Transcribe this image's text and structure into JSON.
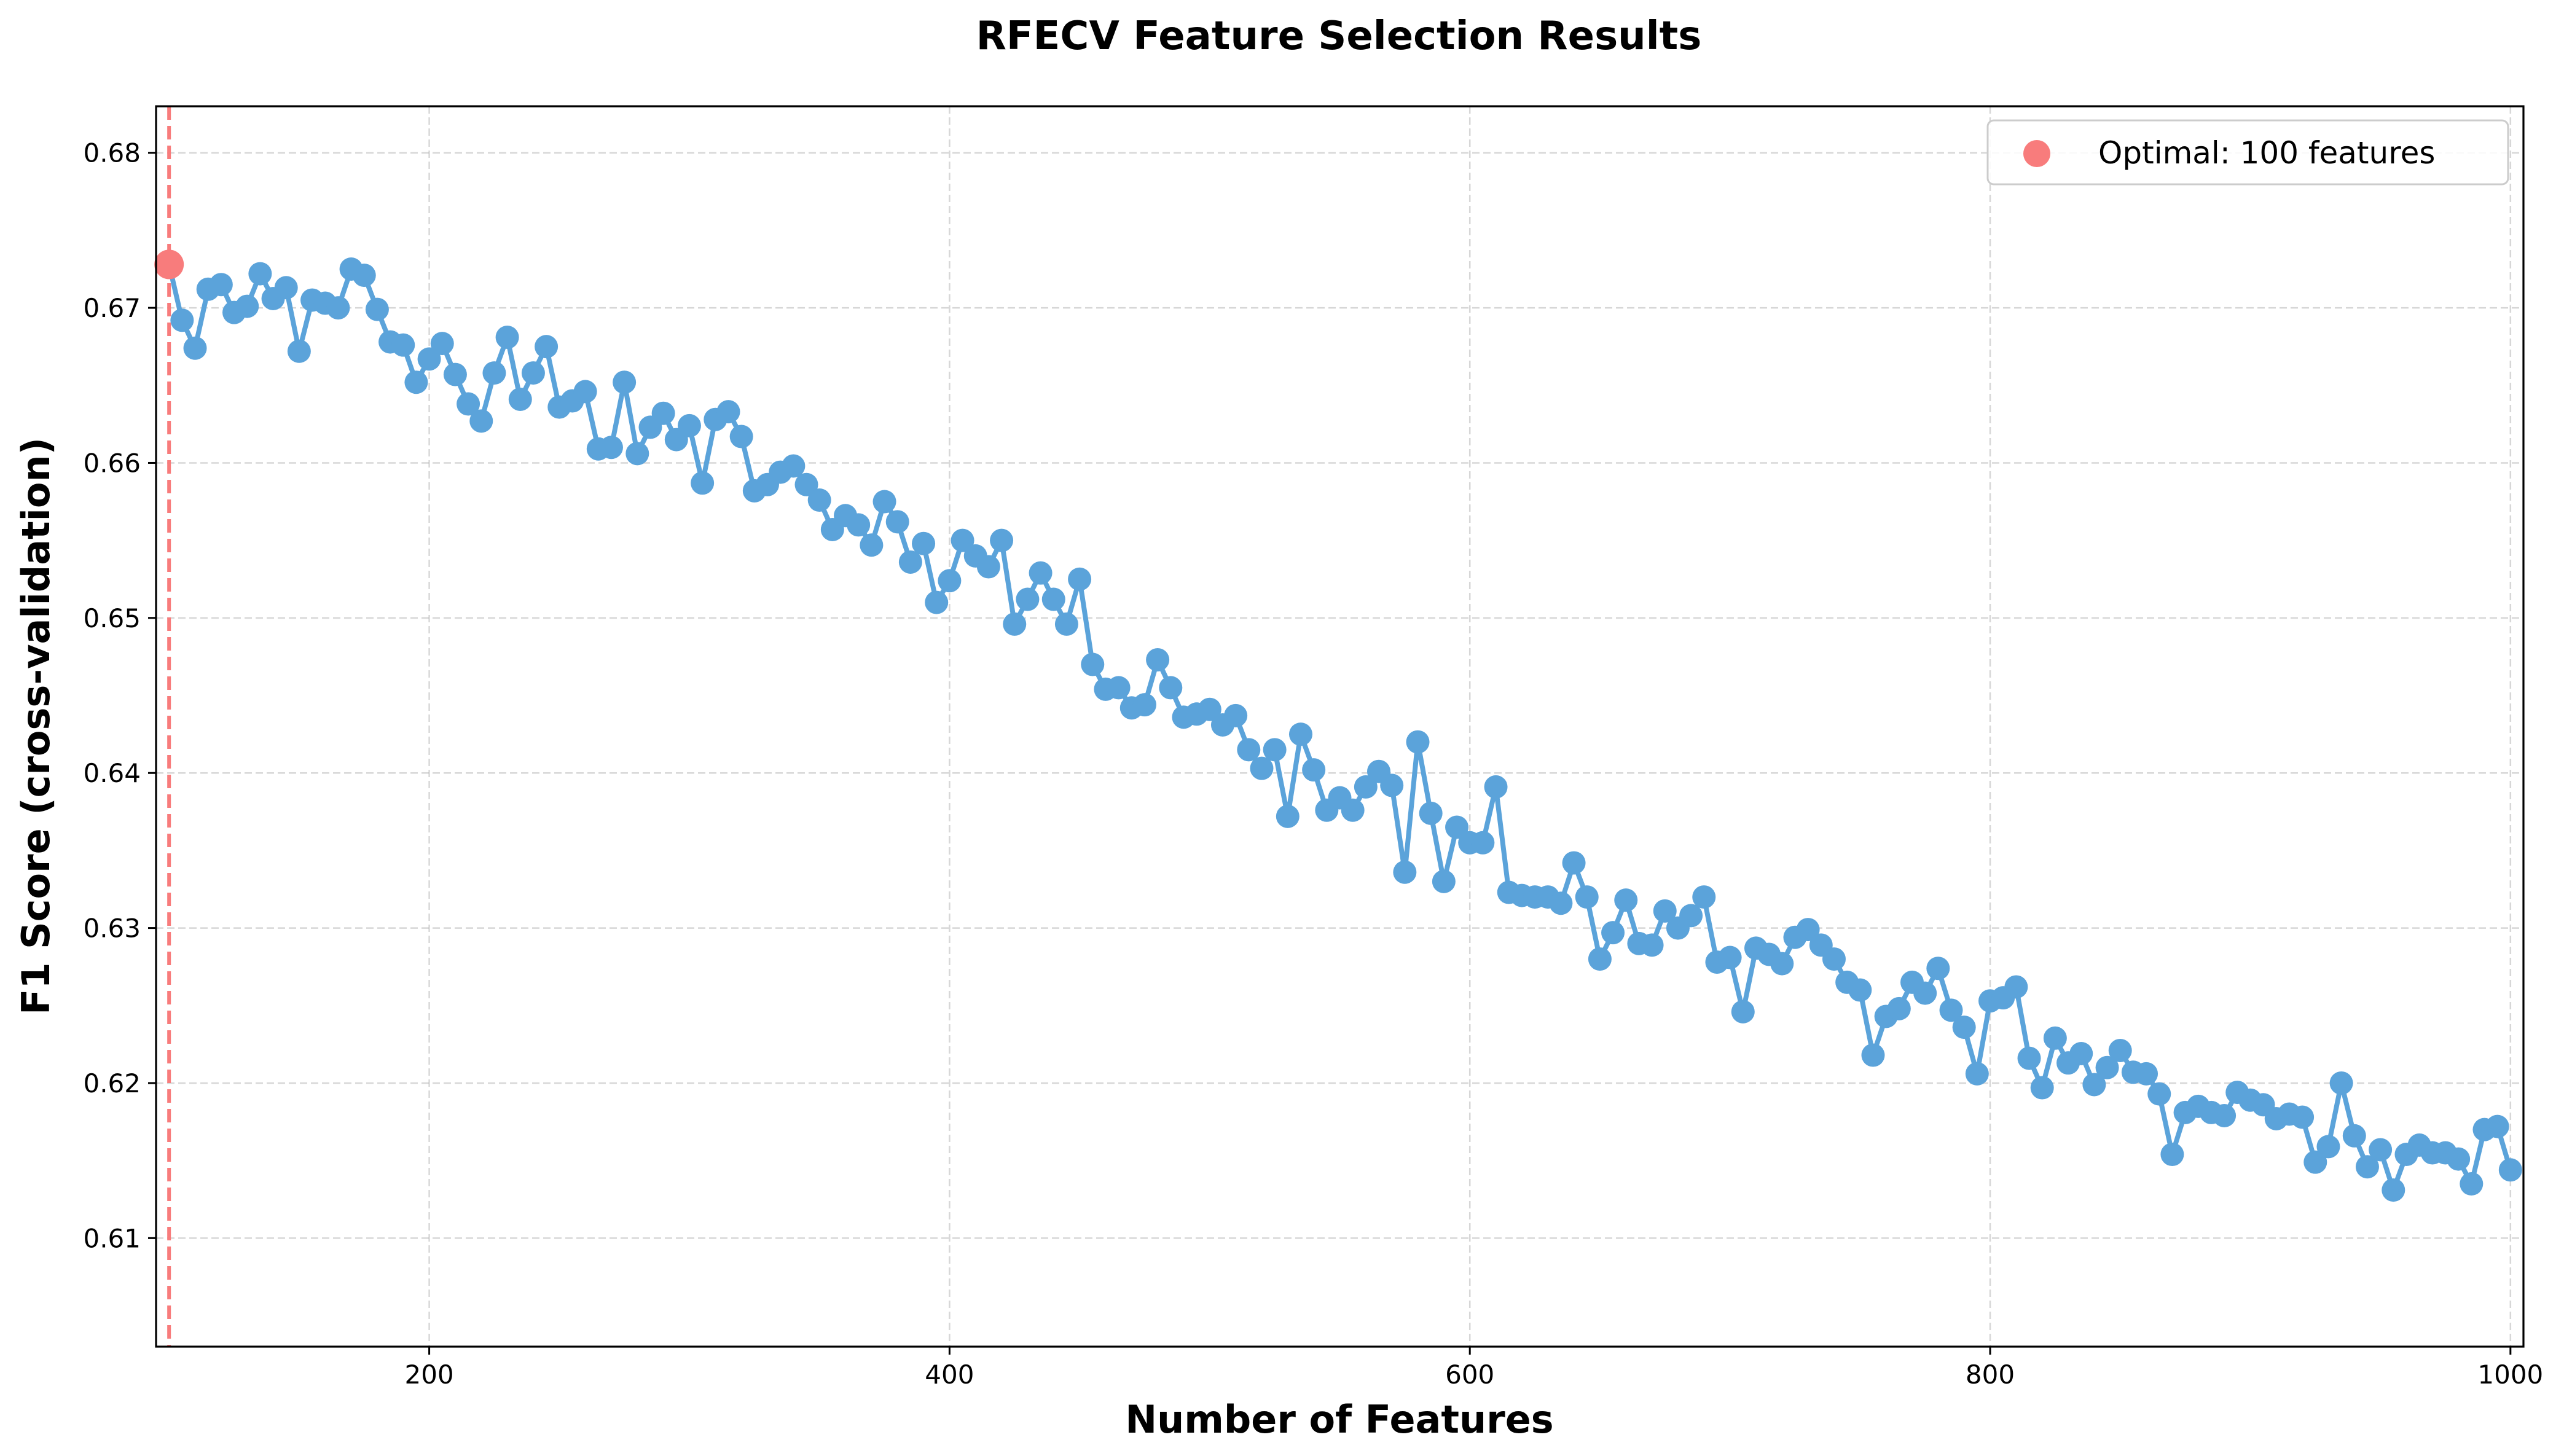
{
  "chart_data": {
    "type": "line",
    "title": "RFECV Feature Selection Results",
    "xlabel": "Number of Features",
    "ylabel": "F1 Score (cross-validation)",
    "xlim": [
      95,
      1005
    ],
    "ylim": [
      0.603,
      0.683
    ],
    "xticks": [
      200,
      400,
      600,
      800,
      1000
    ],
    "yticks": [
      0.61,
      0.62,
      0.63,
      0.64,
      0.65,
      0.66,
      0.67,
      0.68
    ],
    "grid": true,
    "grid_style": "dashed",
    "legend_placement": "top-right",
    "line_color": "#5ba3da",
    "optimal_color": "#f87c7c",
    "optimal": {
      "x": 100,
      "y": 0.6728,
      "label": "Optimal: 100 features"
    },
    "series": [
      {
        "x": [
          100,
          105,
          110,
          115,
          120,
          125,
          130,
          135,
          140,
          145,
          150,
          155,
          160,
          165,
          170,
          175,
          180,
          185,
          190,
          195,
          200,
          205,
          210,
          215,
          220,
          225,
          230,
          235,
          240,
          245,
          250,
          255,
          260,
          265,
          270,
          275,
          280,
          285,
          290,
          295,
          300,
          305,
          310,
          315,
          320,
          325,
          330,
          335,
          340,
          345,
          350,
          355,
          360,
          365,
          370,
          375,
          380,
          385,
          390,
          395,
          400,
          405,
          410,
          415,
          420,
          425,
          430,
          435,
          440,
          445,
          450,
          455,
          460,
          465,
          470,
          475,
          480,
          485,
          490,
          495,
          500,
          505,
          510,
          515,
          520,
          525,
          530,
          535,
          540,
          545,
          550,
          555,
          560,
          565,
          570,
          575,
          580,
          585,
          590,
          595,
          600,
          605,
          610,
          615,
          620,
          625,
          630,
          635,
          640,
          645,
          650,
          655,
          660,
          665,
          670,
          675,
          680,
          685,
          690,
          695,
          700,
          705,
          710,
          715,
          720,
          725,
          730,
          735,
          740,
          745,
          750,
          755,
          760,
          765,
          770,
          775,
          780,
          785,
          790,
          795,
          800,
          805,
          810,
          815,
          820,
          825,
          830,
          835,
          840,
          845,
          850,
          855,
          860,
          865,
          870,
          875,
          880,
          885,
          890,
          895,
          900,
          905,
          910,
          915,
          920,
          925,
          930,
          935,
          940,
          945,
          950,
          955,
          960,
          965,
          970,
          975,
          980,
          985,
          990,
          995,
          1000
        ],
        "y": [
          0.6728,
          0.6692,
          0.6674,
          0.6712,
          0.6715,
          0.6697,
          0.6701,
          0.6722,
          0.6706,
          0.6713,
          0.6672,
          0.6705,
          0.6703,
          0.67,
          0.6725,
          0.6721,
          0.6699,
          0.6678,
          0.6676,
          0.6652,
          0.6667,
          0.6677,
          0.6657,
          0.6638,
          0.6627,
          0.6658,
          0.6681,
          0.6641,
          0.6658,
          0.6675,
          0.6636,
          0.664,
          0.6646,
          0.6609,
          0.661,
          0.6652,
          0.6606,
          0.6623,
          0.6632,
          0.6615,
          0.6624,
          0.6587,
          0.6628,
          0.6633,
          0.6617,
          0.6582,
          0.6586,
          0.6594,
          0.6598,
          0.6586,
          0.6576,
          0.6557,
          0.6566,
          0.656,
          0.6547,
          0.6575,
          0.6562,
          0.6536,
          0.6548,
          0.651,
          0.6524,
          0.655,
          0.654,
          0.6533,
          0.655,
          0.6496,
          0.6512,
          0.6529,
          0.6512,
          0.6496,
          0.6525,
          0.647,
          0.6454,
          0.6455,
          0.6442,
          0.6444,
          0.6473,
          0.6455,
          0.6436,
          0.6438,
          0.6441,
          0.6431,
          0.6437,
          0.6415,
          0.6403,
          0.6415,
          0.6372,
          0.6425,
          0.6402,
          0.6376,
          0.6384,
          0.6376,
          0.6391,
          0.6401,
          0.6392,
          0.6336,
          0.642,
          0.6374,
          0.633,
          0.6365,
          0.6355,
          0.6355,
          0.6391,
          0.6323,
          0.6321,
          0.632,
          0.632,
          0.6316,
          0.6342,
          0.632,
          0.628,
          0.6297,
          0.6318,
          0.629,
          0.6289,
          0.6311,
          0.63,
          0.6308,
          0.632,
          0.6278,
          0.6281,
          0.6246,
          0.6287,
          0.6283,
          0.6277,
          0.6294,
          0.6299,
          0.6289,
          0.628,
          0.6265,
          0.626,
          0.6218,
          0.6243,
          0.6248,
          0.6265,
          0.6258,
          0.6274,
          0.6247,
          0.6236,
          0.6206,
          0.6253,
          0.6255,
          0.6262,
          0.6216,
          0.6197,
          0.6229,
          0.6213,
          0.6219,
          0.6199,
          0.621,
          0.6221,
          0.6207,
          0.6206,
          0.6193,
          0.6154,
          0.6181,
          0.6185,
          0.6181,
          0.6179,
          0.6194,
          0.6189,
          0.6186,
          0.6177,
          0.618,
          0.6178,
          0.6149,
          0.6159,
          0.62,
          0.6166,
          0.6146,
          0.6157,
          0.6131,
          0.6154,
          0.616,
          0.6155,
          0.6155,
          0.6151,
          0.6135,
          0.617,
          0.6172,
          0.6144
        ]
      }
    ]
  }
}
